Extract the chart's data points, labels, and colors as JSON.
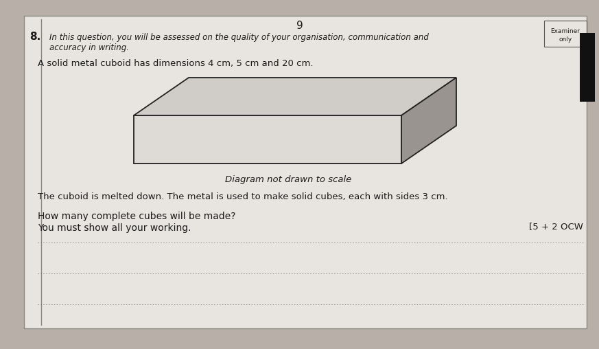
{
  "bg_color": "#b8b0a8",
  "paper_color": "#e8e4e0",
  "paper_color2": "#d8d4d0",
  "page_number": "9",
  "question_number": "8.",
  "question_intro_line1": "In this question, you will be assessed on the quality of your organisation, communication and",
  "question_intro_line2": "accuracy in writing.",
  "examiner_label_line1": "Examiner",
  "examiner_label_line2": "only",
  "cuboid_text": "A solid metal cuboid has dimensions 4 cm, 5 cm and 20 cm.",
  "diagram_label": "Diagram not drawn to scale",
  "melted_text": "The cuboid is melted down. The metal is used to make solid cubes, each with sides 3 cm.",
  "question_line1": "How many complete cubes will be made?",
  "question_line2": "You must show all your working.",
  "marks_text": "[5 + 2 OCW",
  "cuboid_face_color": "#dedad6",
  "cuboid_top_color": "#d0ccc8",
  "cuboid_side_color": "#9a9490",
  "cuboid_edge_color": "#222222",
  "border_color": "#888880",
  "text_color": "#1a1a1a",
  "dotted_color": "#888888",
  "black_bar_color": "#111111"
}
